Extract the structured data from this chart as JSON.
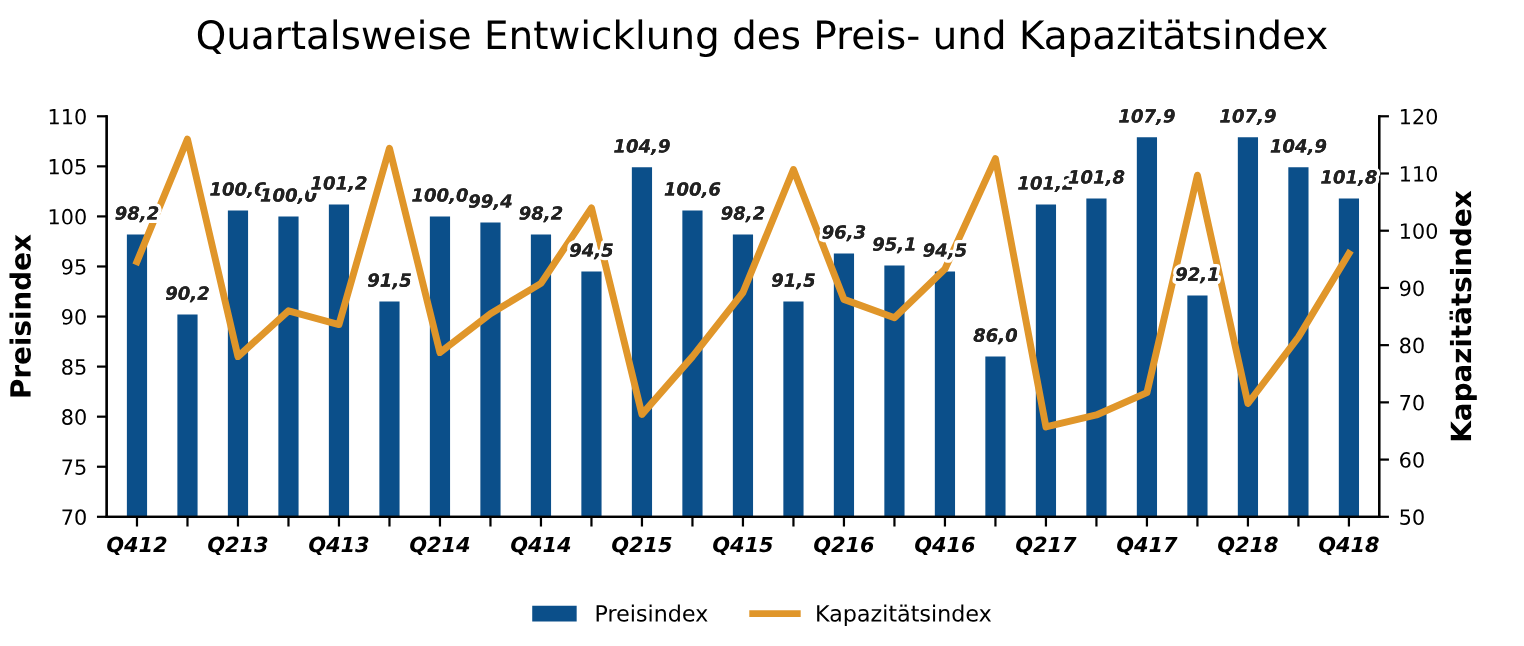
{
  "chart_data": {
    "type": "bar",
    "title": "Quartalsweise Entwicklung des Preis- und Kapazitätsindex",
    "ylabel": "Preisindex",
    "y2label": "Kapazitätsindex",
    "categories": [
      "Q412",
      null,
      "Q213",
      null,
      "Q413",
      null,
      "Q214",
      null,
      "Q414",
      null,
      "Q215",
      null,
      "Q415",
      null,
      "Q216",
      null,
      "Q416",
      null,
      "Q217",
      null,
      "Q417",
      null,
      "Q218",
      null,
      "Q418"
    ],
    "series": [
      {
        "name": "Preisindex",
        "color": "#0b4f8a",
        "values": [
          98.2,
          90.2,
          100.6,
          100.0,
          101.2,
          91.5,
          100.0,
          99.4,
          98.2,
          94.5,
          104.9,
          100.6,
          98.2,
          91.5,
          96.3,
          95.1,
          94.5,
          86.0,
          101.2,
          101.8,
          107.9,
          92.1,
          107.9,
          104.9,
          101.8
        ],
        "value_labels": [
          "98,2",
          "90,2",
          "100,6",
          "100,0",
          "101,2",
          "91,5",
          "100,0",
          "99,4",
          "98,2",
          "94,5",
          "104,9",
          "100,6",
          "98,2",
          "91,5",
          "96,3",
          "95,1",
          "94,5",
          "86,0",
          "101,2",
          "101,8",
          "107,9",
          "92,1",
          "107,9",
          "104,9",
          "101,8"
        ]
      },
      {
        "name": "Kapazitätsindex",
        "type": "line",
        "axis": "y2",
        "color": "#e0962a",
        "values": [
          94.6,
          116,
          78,
          86,
          83.6,
          114.4,
          78.7,
          85.5,
          90.8,
          104,
          67.9,
          78,
          89.2,
          110.7,
          88,
          84.8,
          93.3,
          112.6,
          65.7,
          67.8,
          71.7,
          109.7,
          69.8,
          81.4,
          96
        ]
      }
    ],
    "ylim": [
      70,
      110
    ],
    "yticks": [
      70,
      75,
      80,
      85,
      90,
      95,
      100,
      105,
      110
    ],
    "y2lim": [
      50,
      120
    ],
    "y2ticks": [
      50,
      60,
      70,
      80,
      90,
      100,
      110,
      120
    ],
    "grid": false,
    "legend": "bottom",
    "marker": "none",
    "line_style": "solid"
  }
}
